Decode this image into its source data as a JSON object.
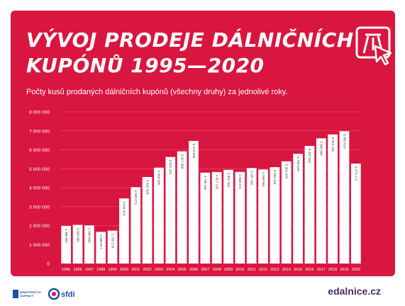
{
  "header": {
    "title_line1": "VÝVOJ PRODEJE DÁLNIČNÍCH",
    "title_line2": "KUPÓNŮ 1995—2020",
    "subtitle": "Počty kusů prodaných dálničních kupónů (všechny druhy) za jednolivé roky."
  },
  "footer": {
    "brand": "edalnice.cz",
    "logo1_label": "MINISTERSTVO DOPRAVY",
    "logo2_label": "sfdi"
  },
  "colors": {
    "background": "#d8163f",
    "bars": "#ffffff",
    "text": "#ffffff",
    "brand": "#4a2c66"
  },
  "chart_data": {
    "type": "bar",
    "title": "",
    "xlabel": "",
    "ylabel": "",
    "ylim": [
      0,
      8000000
    ],
    "y_ticks": [
      0,
      1000000,
      2000000,
      3000000,
      4000000,
      5000000,
      6000000,
      7000000,
      8000000
    ],
    "y_tick_labels": [
      "0",
      "1 000 000",
      "2 000 000",
      "3 000 000",
      "4 000 000",
      "5 000 000",
      "6 000 000",
      "7 000 000",
      "8 000 000"
    ],
    "grid": true,
    "categories": [
      "1995",
      "1996",
      "1997",
      "1998",
      "1999",
      "2000",
      "2001",
      "2002",
      "2003",
      "2004",
      "2005",
      "2006",
      "2007",
      "2008",
      "2009",
      "2010",
      "2011",
      "2012",
      "2013",
      "2014",
      "2015",
      "2016",
      "2017",
      "2018",
      "2019",
      "2020"
    ],
    "values": [
      1980857,
      2039085,
      2008893,
      1668877,
      1735179,
      3434823,
      4028273,
      4562425,
      5058995,
      5622412,
      5917989,
      6470049,
      4795115,
      4827142,
      4942262,
      4836071,
      5037032,
      4959964,
      5083128,
      5391644,
      5789029,
      6207332,
      6605564,
      6812161,
      6981610,
      5274172
    ],
    "value_labels": [
      "1 980 857",
      "2 039 085",
      "2 008 893",
      "1 668 877",
      "1 735 179",
      "3 434 823",
      "4 028 273",
      "4 562 425",
      "5 058 995",
      "5 622 412",
      "5 917 989",
      "6 470 049",
      "4 795 115",
      "4 827 142",
      "4 942 262",
      "4 836 071",
      "5 037 032",
      "4 959 964",
      "5 083 128",
      "5 391 644",
      "5 789 029",
      "6 207 332",
      "6 605 564",
      "6 812 161",
      "6 981 610",
      "5 274 172"
    ]
  }
}
